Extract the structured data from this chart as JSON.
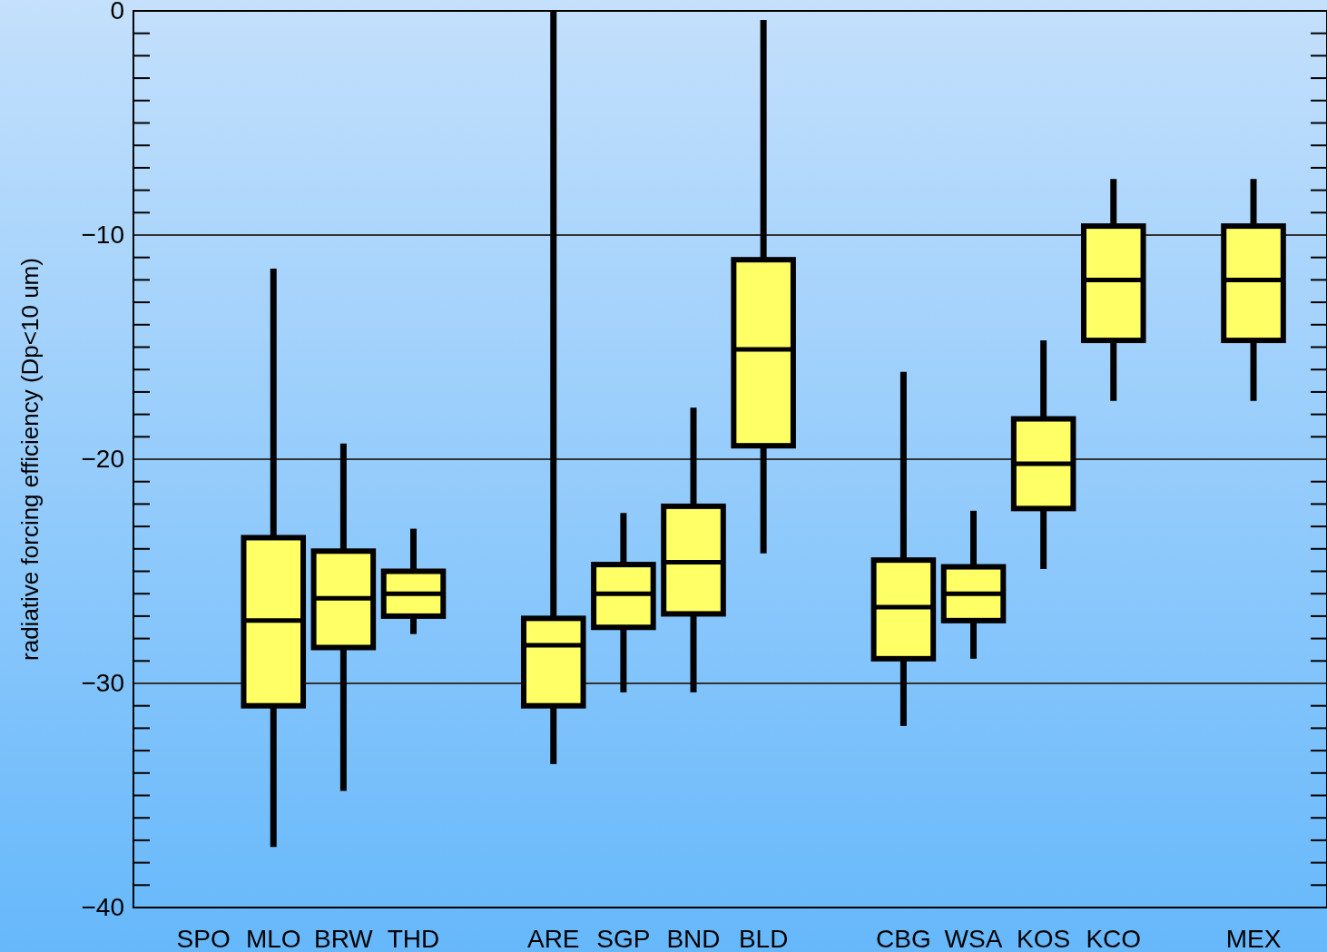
{
  "chart_data": {
    "type": "box",
    "ylabel": "radiative forcing efficiency (Dp<10 um)",
    "categories": [
      "SPO",
      "MLO",
      "BRW",
      "THD",
      null,
      "ARE",
      "SGP",
      "BND",
      "BLD",
      null,
      "CBG",
      "WSA",
      "KOS",
      "KCO",
      null,
      "MEX"
    ],
    "boxes": [
      null,
      {
        "low": -37.3,
        "q1": -31.0,
        "median": -27.2,
        "q3": -23.5,
        "high": -11.5
      },
      {
        "low": -34.8,
        "q1": -28.4,
        "median": -26.2,
        "q3": -24.1,
        "high": -19.3
      },
      {
        "low": -27.8,
        "q1": -27.0,
        "median": -26.0,
        "q3": -25.0,
        "high": -23.1
      },
      null,
      {
        "low": -33.6,
        "q1": -31.0,
        "median": -28.3,
        "q3": -27.1,
        "high": 0
      },
      {
        "low": -30.4,
        "q1": -27.5,
        "median": -26.0,
        "q3": -24.7,
        "high": -22.4
      },
      {
        "low": -30.4,
        "q1": -26.9,
        "median": -24.6,
        "q3": -22.1,
        "high": -17.7
      },
      {
        "low": -24.2,
        "q1": -19.4,
        "median": -15.1,
        "q3": -11.1,
        "high": -0.4
      },
      null,
      {
        "low": -31.9,
        "q1": -28.9,
        "median": -26.6,
        "q3": -24.5,
        "high": -16.1
      },
      {
        "low": -28.9,
        "q1": -27.2,
        "median": -26.0,
        "q3": -24.8,
        "high": -22.3
      },
      {
        "low": -24.9,
        "q1": -22.2,
        "median": -20.2,
        "q3": -18.2,
        "high": -14.7
      },
      {
        "low": -17.4,
        "q1": -14.7,
        "median": -12.0,
        "q3": -9.6,
        "high": -7.5
      },
      null,
      {
        "low": -17.4,
        "q1": -14.7,
        "median": -12.0,
        "q3": -9.6,
        "high": -7.5
      }
    ],
    "color": "#ffff66",
    "ylim": [
      -40,
      0
    ],
    "yticks": [
      {
        "value": -40,
        "label": "−40"
      },
      {
        "value": -30,
        "label": "−30"
      },
      {
        "value": -20,
        "label": "−20"
      },
      {
        "value": -10,
        "label": "−10"
      },
      0
    ],
    "grid": "y"
  }
}
